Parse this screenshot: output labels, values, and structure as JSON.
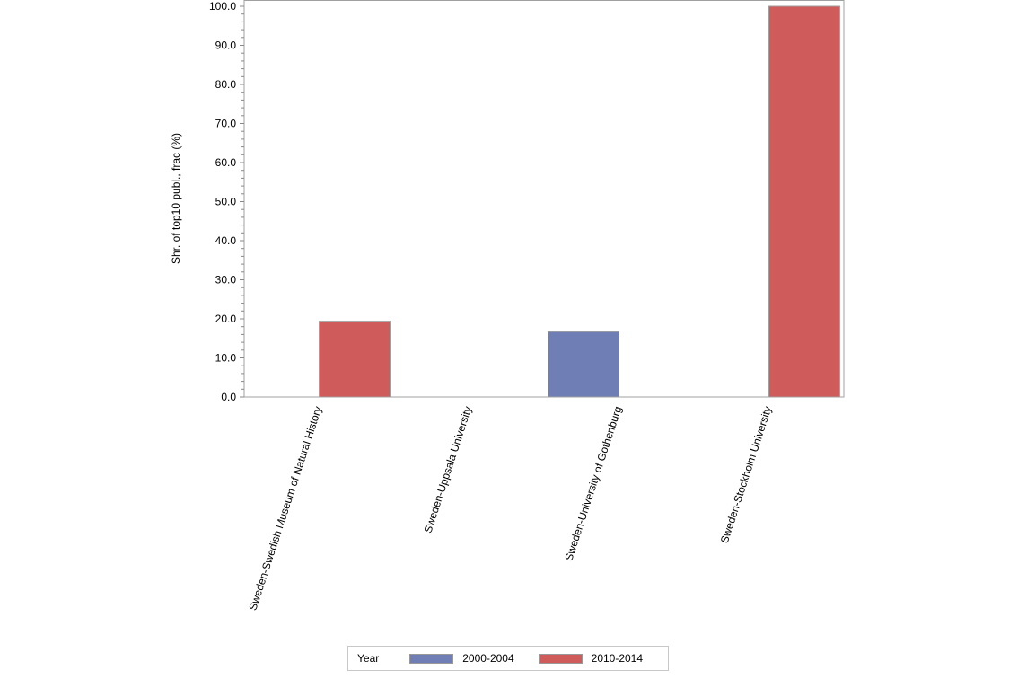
{
  "chart_data": {
    "type": "bar",
    "title": "",
    "xlabel": "",
    "ylabel": "Shr. of top10 publ., frac (%)",
    "ylim": [
      0,
      100
    ],
    "yticks": [
      "0.0",
      "10.0",
      "20.0",
      "30.0",
      "40.0",
      "50.0",
      "60.0",
      "70.0",
      "80.0",
      "90.0",
      "100.0"
    ],
    "grid": false,
    "legend_position": "bottom",
    "categories": [
      "Sweden-Swedish Museum of Natural History",
      "Sweden-Uppsala University",
      "Sweden-University of Gothenburg",
      "Sweden-Stockholm University"
    ],
    "series": [
      {
        "name": "2000-2004",
        "color": "#6f7fb5",
        "values": [
          null,
          null,
          16.7,
          null
        ]
      },
      {
        "name": "2010-2014",
        "color": "#d05b5b",
        "values": [
          19.4,
          null,
          null,
          100.0
        ]
      }
    ]
  },
  "legend": {
    "title": "Year",
    "items": [
      {
        "label": "2000-2004",
        "color": "#6f7fb5"
      },
      {
        "label": "2010-2014",
        "color": "#d05b5b"
      }
    ]
  }
}
